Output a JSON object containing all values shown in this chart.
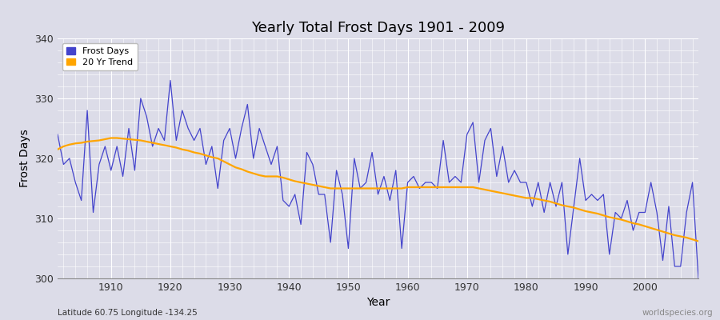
{
  "title": "Yearly Total Frost Days 1901 - 2009",
  "xlabel": "Year",
  "ylabel": "Frost Days",
  "subtitle": "Latitude 60.75 Longitude -134.25",
  "watermark": "worldspecies.org",
  "ylim": [
    300,
    340
  ],
  "yticks": [
    300,
    310,
    320,
    330,
    340
  ],
  "line_color": "#4444cc",
  "trend_color": "#FFA500",
  "bg_color": "#dcdce8",
  "legend_labels": [
    "Frost Days",
    "20 Yr Trend"
  ],
  "years": [
    1901,
    1902,
    1903,
    1904,
    1905,
    1906,
    1907,
    1908,
    1909,
    1910,
    1911,
    1912,
    1913,
    1914,
    1915,
    1916,
    1917,
    1918,
    1919,
    1920,
    1921,
    1922,
    1923,
    1924,
    1925,
    1926,
    1927,
    1928,
    1929,
    1930,
    1931,
    1932,
    1933,
    1934,
    1935,
    1936,
    1937,
    1938,
    1939,
    1940,
    1941,
    1942,
    1943,
    1944,
    1945,
    1946,
    1947,
    1948,
    1949,
    1950,
    1951,
    1952,
    1953,
    1954,
    1955,
    1956,
    1957,
    1958,
    1959,
    1960,
    1961,
    1962,
    1963,
    1964,
    1965,
    1966,
    1967,
    1968,
    1969,
    1970,
    1971,
    1972,
    1973,
    1974,
    1975,
    1976,
    1977,
    1978,
    1979,
    1980,
    1981,
    1982,
    1983,
    1984,
    1985,
    1986,
    1987,
    1988,
    1989,
    1990,
    1991,
    1992,
    1993,
    1994,
    1995,
    1996,
    1997,
    1998,
    1999,
    2000,
    2001,
    2002,
    2003,
    2004,
    2005,
    2006,
    2007,
    2008,
    2009
  ],
  "frost_days": [
    324,
    319,
    320,
    316,
    313,
    328,
    311,
    319,
    322,
    318,
    322,
    317,
    325,
    318,
    330,
    327,
    322,
    325,
    323,
    333,
    323,
    328,
    325,
    323,
    325,
    319,
    322,
    315,
    323,
    325,
    320,
    325,
    329,
    320,
    325,
    322,
    319,
    322,
    313,
    312,
    314,
    309,
    321,
    319,
    314,
    314,
    306,
    318,
    314,
    305,
    320,
    315,
    316,
    321,
    314,
    317,
    313,
    318,
    305,
    316,
    317,
    315,
    316,
    316,
    315,
    323,
    316,
    317,
    316,
    324,
    326,
    316,
    323,
    325,
    317,
    322,
    316,
    318,
    316,
    316,
    312,
    316,
    311,
    316,
    312,
    316,
    304,
    312,
    320,
    313,
    314,
    313,
    314,
    304,
    311,
    310,
    313,
    308,
    311,
    311,
    316,
    311,
    303,
    312,
    302,
    302,
    311,
    316,
    300
  ],
  "trend_years": [
    1901,
    1902,
    1903,
    1904,
    1905,
    1906,
    1907,
    1908,
    1909,
    1910,
    1911,
    1912,
    1913,
    1914,
    1915,
    1916,
    1917,
    1918,
    1919,
    1920,
    1921,
    1922,
    1923,
    1924,
    1925,
    1926,
    1927,
    1928,
    1929,
    1930,
    1931,
    1932,
    1933,
    1934,
    1935,
    1936,
    1937,
    1938,
    1939,
    1940,
    1941,
    1942,
    1943,
    1944,
    1945,
    1946,
    1947,
    1948,
    1949,
    1950,
    1951,
    1952,
    1953,
    1954,
    1955,
    1956,
    1957,
    1958,
    1959,
    1960,
    1961,
    1962,
    1963,
    1964,
    1965,
    1966,
    1967,
    1968,
    1969,
    1970,
    1971,
    1972,
    1973,
    1974,
    1975,
    1976,
    1977,
    1978,
    1979,
    1980,
    1981,
    1982,
    1983,
    1984,
    1985,
    1986,
    1987,
    1988,
    1989,
    1990,
    1991,
    1992,
    1993,
    1994,
    1995,
    1996,
    1997,
    1998,
    1999,
    2000,
    2001,
    2002,
    2003,
    2004,
    2005,
    2006,
    2007,
    2008,
    2009
  ],
  "trend_values": [
    321.5,
    322.0,
    322.3,
    322.5,
    322.6,
    322.8,
    322.9,
    323.0,
    323.2,
    323.4,
    323.4,
    323.3,
    323.2,
    323.1,
    323.0,
    322.8,
    322.6,
    322.4,
    322.2,
    322.0,
    321.8,
    321.5,
    321.3,
    321.0,
    320.8,
    320.5,
    320.2,
    320.0,
    319.5,
    319.0,
    318.5,
    318.2,
    317.8,
    317.5,
    317.2,
    317.0,
    317.0,
    317.0,
    316.8,
    316.5,
    316.2,
    316.0,
    315.8,
    315.6,
    315.4,
    315.2,
    315.0,
    315.0,
    315.0,
    315.0,
    315.0,
    315.0,
    315.0,
    315.0,
    315.0,
    315.0,
    315.0,
    315.0,
    315.0,
    315.2,
    315.2,
    315.2,
    315.2,
    315.2,
    315.2,
    315.2,
    315.2,
    315.2,
    315.2,
    315.2,
    315.2,
    315.0,
    314.8,
    314.6,
    314.4,
    314.2,
    314.0,
    313.8,
    313.6,
    313.4,
    313.4,
    313.2,
    313.0,
    312.8,
    312.5,
    312.2,
    312.0,
    311.8,
    311.5,
    311.2,
    311.0,
    310.8,
    310.5,
    310.2,
    310.0,
    309.8,
    309.5,
    309.2,
    309.0,
    308.7,
    308.4,
    308.1,
    307.8,
    307.5,
    307.2,
    307.0,
    306.8,
    306.5,
    306.2
  ]
}
